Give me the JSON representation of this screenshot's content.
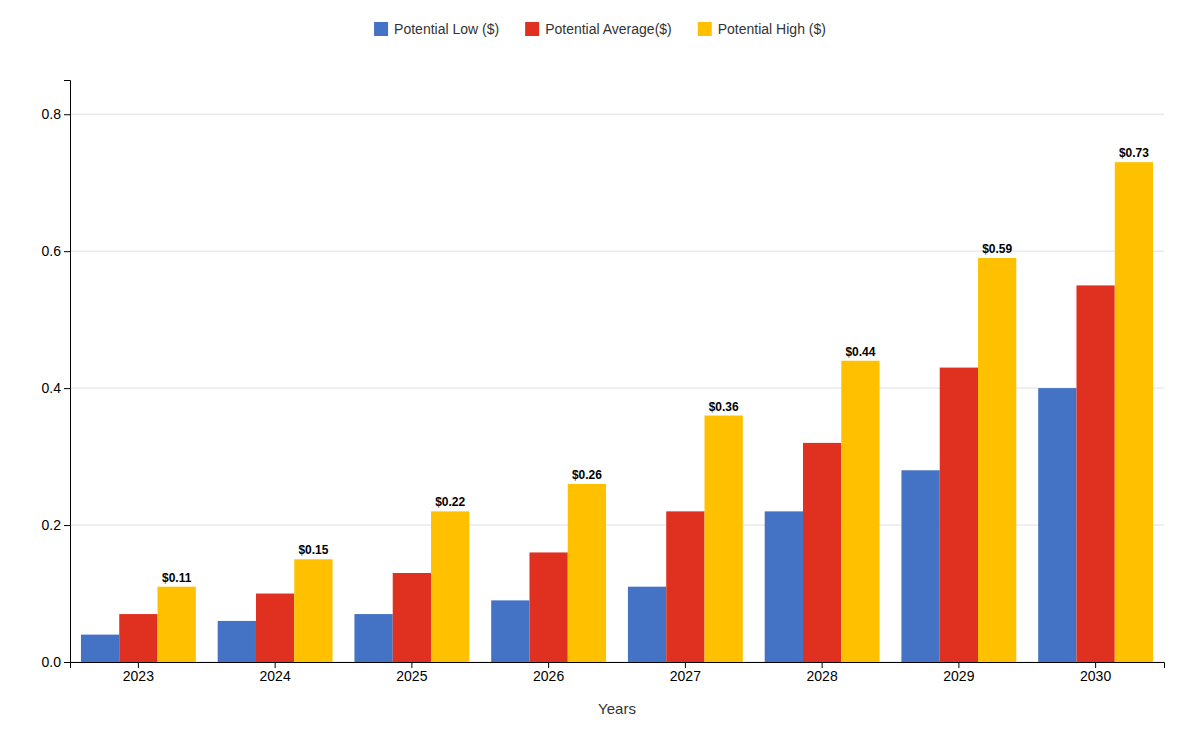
{
  "chart_data": {
    "type": "bar",
    "x_label": "Years",
    "categories": [
      "2023",
      "2024",
      "2025",
      "2026",
      "2027",
      "2028",
      "2029",
      "2030"
    ],
    "series": [
      {
        "name": "Potential Low ($)",
        "color": "#4472C4",
        "values": [
          0.04,
          0.06,
          0.07,
          0.09,
          0.11,
          0.22,
          0.28,
          0.4
        ]
      },
      {
        "name": "Potential Average($)",
        "color": "#E03020",
        "values": [
          0.07,
          0.1,
          0.13,
          0.16,
          0.22,
          0.32,
          0.43,
          0.55
        ]
      },
      {
        "name": "Potential High ($)",
        "color": "#FFC000",
        "values": [
          0.11,
          0.15,
          0.22,
          0.26,
          0.36,
          0.44,
          0.59,
          0.73
        ],
        "data_labels": true,
        "value_labels": [
          "$0.11",
          "$0.15",
          "$0.22",
          "$0.26",
          "$0.36",
          "$0.44",
          "$0.59",
          "$0.73"
        ]
      }
    ],
    "ylim": [
      0,
      0.85
    ],
    "yticks": [
      {
        "value": 0,
        "label": "0.0"
      },
      0.2,
      0.4,
      0.6,
      0.8
    ],
    "grid": true,
    "legend": "top"
  }
}
